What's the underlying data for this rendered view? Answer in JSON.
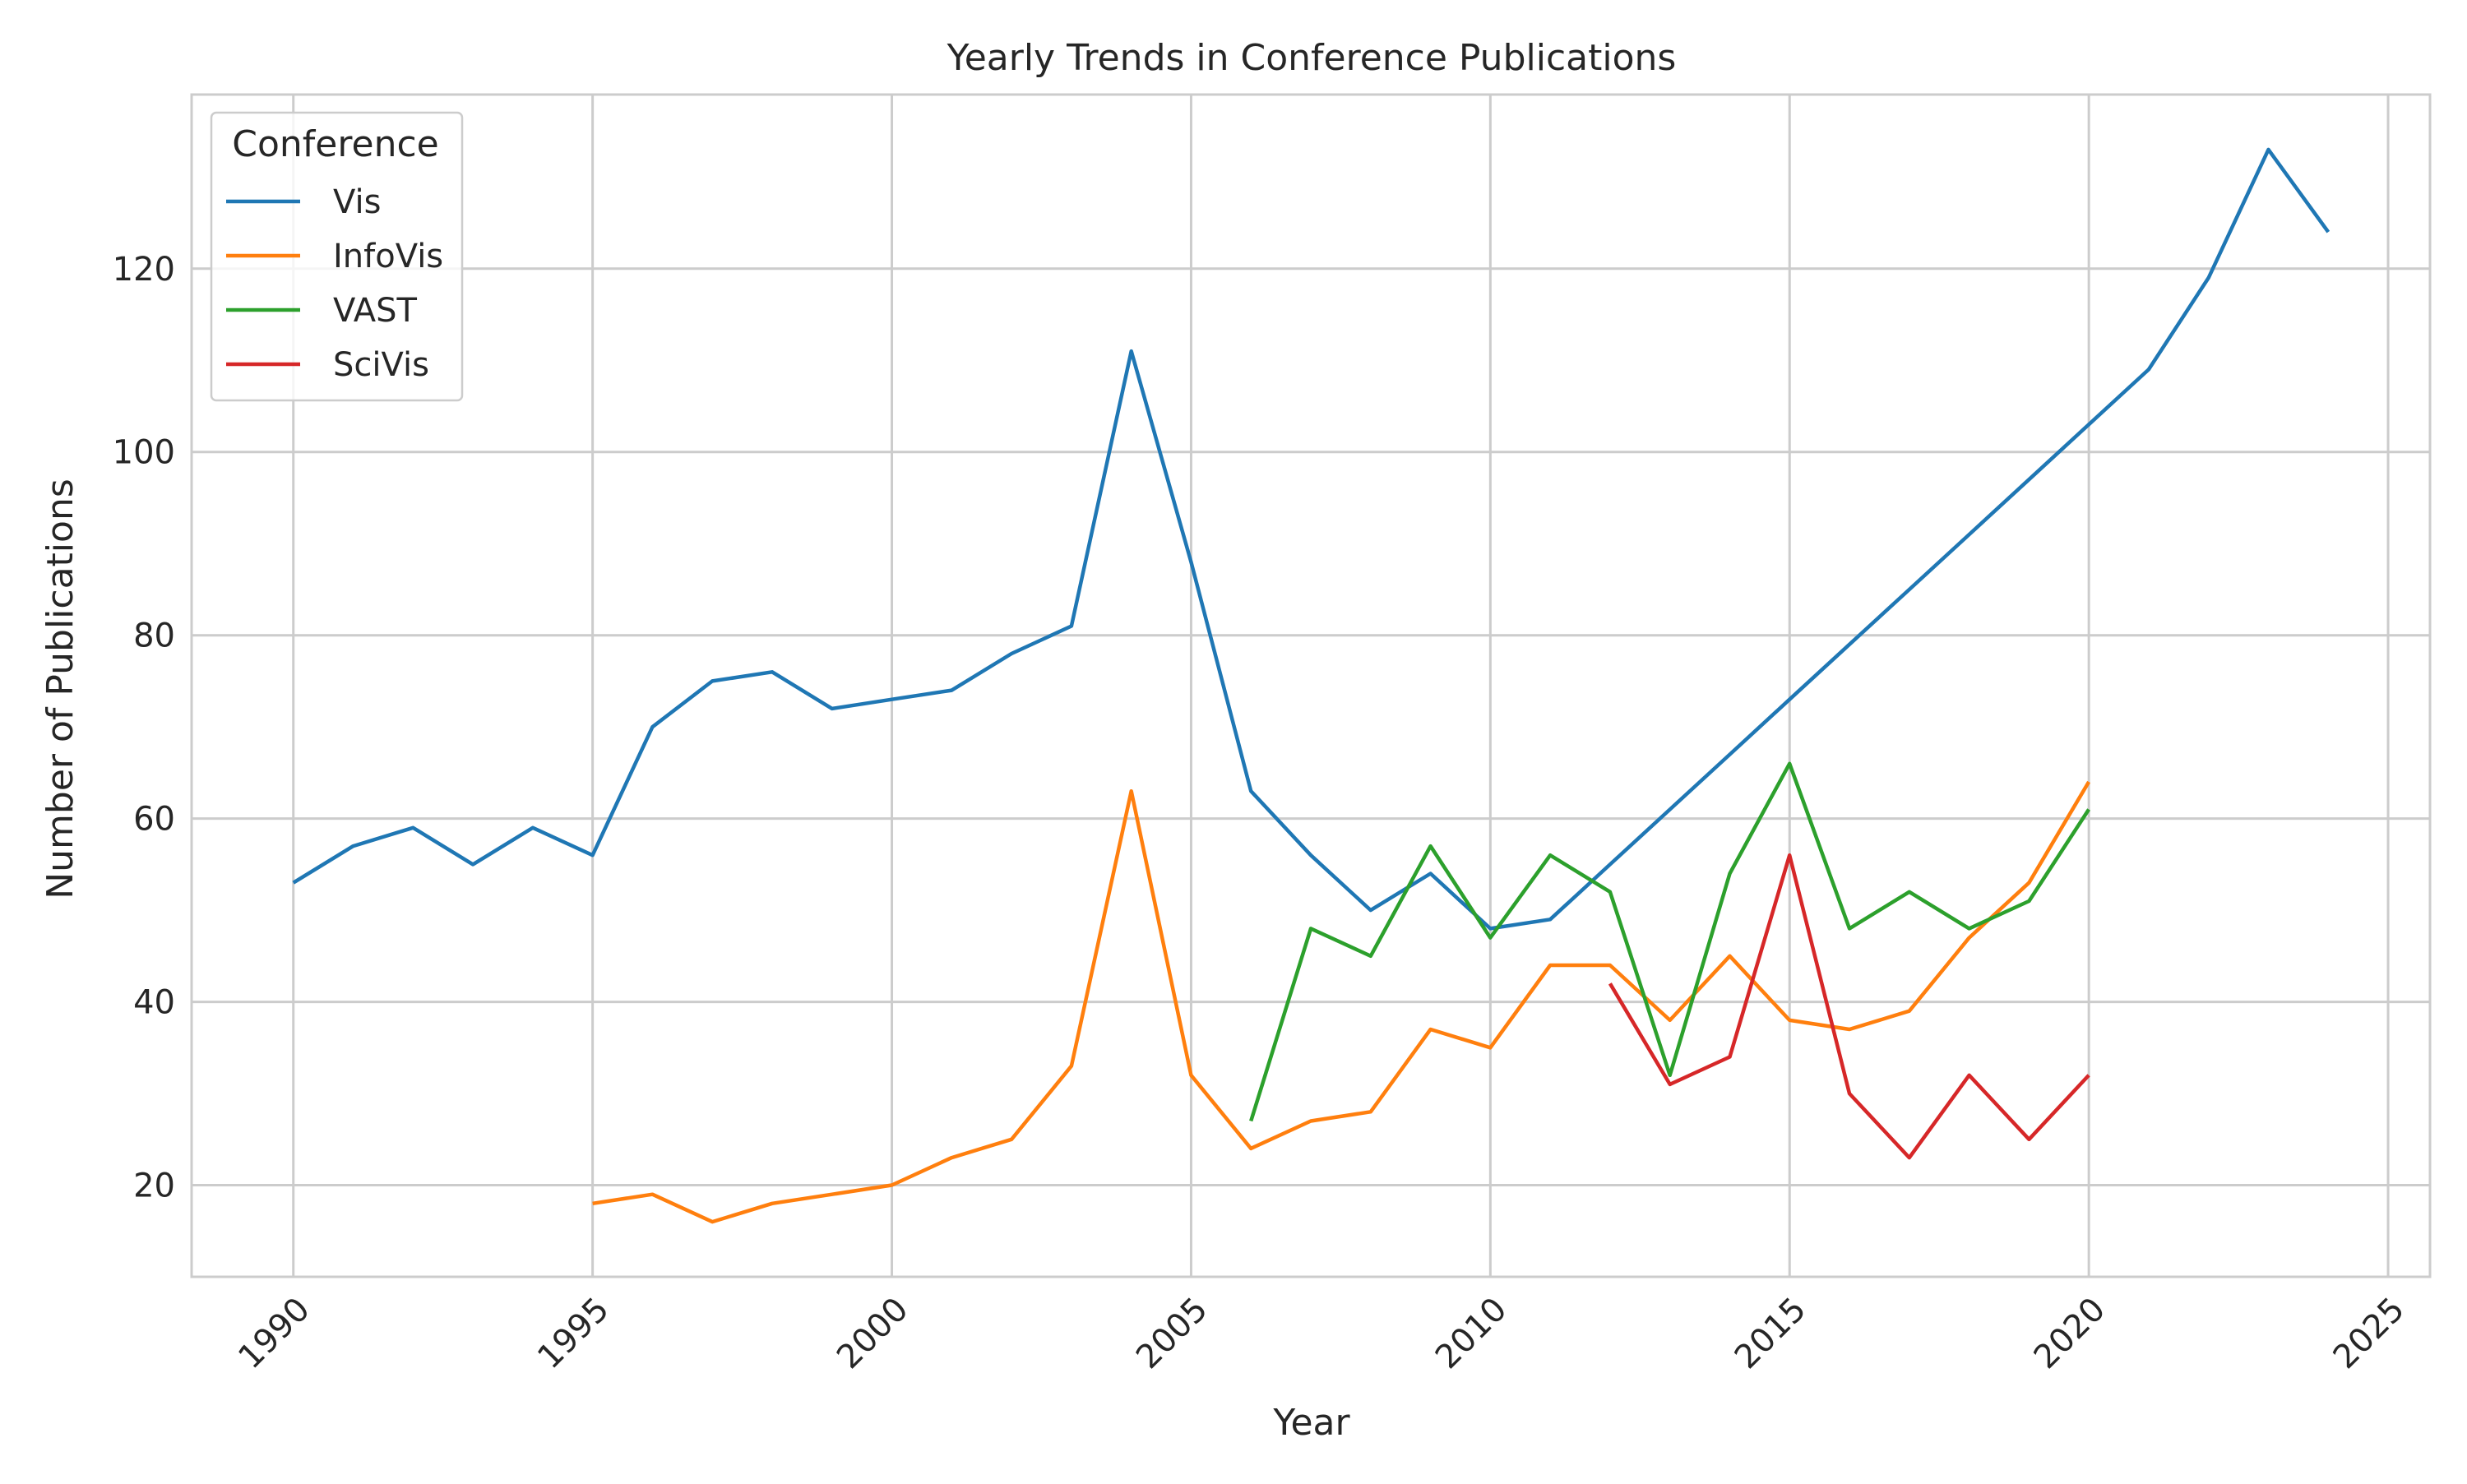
{
  "chart_data": {
    "type": "line",
    "title": "Yearly Trends in Conference Publications",
    "xlabel": "Year",
    "ylabel": "Number of Publications",
    "xlim": [
      1988.3,
      2025.7
    ],
    "ylim": [
      10,
      139
    ],
    "xticks": [
      "1990",
      "1995",
      "2000",
      "2005",
      "2010",
      "2015",
      "2020",
      "2025"
    ],
    "yticks": [
      "20",
      "40",
      "60",
      "80",
      "100",
      "120"
    ],
    "grid": true,
    "legend": {
      "title": "Conference",
      "placement": "top-left"
    },
    "series": [
      {
        "name": "Vis",
        "color": "#1f77b4",
        "x": [
          1990,
          1991,
          1992,
          1993,
          1994,
          1995,
          1996,
          1997,
          1998,
          1999,
          2000,
          2001,
          2002,
          2003,
          2004,
          2005,
          2006,
          2007,
          2008,
          2009,
          2010,
          2011,
          2012,
          2013,
          2014,
          2015,
          2016,
          2017,
          2018,
          2019,
          2020,
          2021,
          2022,
          2023,
          2024
        ],
        "values": [
          53,
          57,
          59,
          55,
          59,
          56,
          70,
          75,
          76,
          72,
          73,
          74,
          78,
          81,
          111,
          88,
          63,
          56,
          50,
          54,
          48,
          49,
          55,
          61,
          67,
          73,
          79,
          85,
          91,
          97,
          103,
          109,
          119,
          133,
          124
        ]
      },
      {
        "name": "InfoVis",
        "color": "#ff7f0e",
        "x": [
          1995,
          1996,
          1997,
          1998,
          1999,
          2000,
          2001,
          2002,
          2003,
          2004,
          2005,
          2006,
          2007,
          2008,
          2009,
          2010,
          2011,
          2012,
          2013,
          2014,
          2015,
          2016,
          2017,
          2018,
          2019,
          2020
        ],
        "values": [
          18,
          19,
          16,
          18,
          19,
          20,
          23,
          25,
          33,
          63,
          32,
          24,
          27,
          28,
          37,
          35,
          44,
          44,
          38,
          45,
          38,
          37,
          39,
          47,
          53,
          64
        ]
      },
      {
        "name": "VAST",
        "color": "#2ca02c",
        "x": [
          2006,
          2007,
          2008,
          2009,
          2010,
          2011,
          2012,
          2013,
          2014,
          2015,
          2016,
          2017,
          2018,
          2019,
          2020
        ],
        "values": [
          27,
          48,
          45,
          57,
          47,
          56,
          52,
          32,
          54,
          66,
          48,
          52,
          48,
          51,
          61
        ]
      },
      {
        "name": "SciVis",
        "color": "#d62728",
        "x": [
          2012,
          2013,
          2014,
          2015,
          2016,
          2017,
          2018,
          2019,
          2020
        ],
        "values": [
          42,
          31,
          34,
          56,
          30,
          23,
          32,
          25,
          32
        ]
      }
    ]
  }
}
